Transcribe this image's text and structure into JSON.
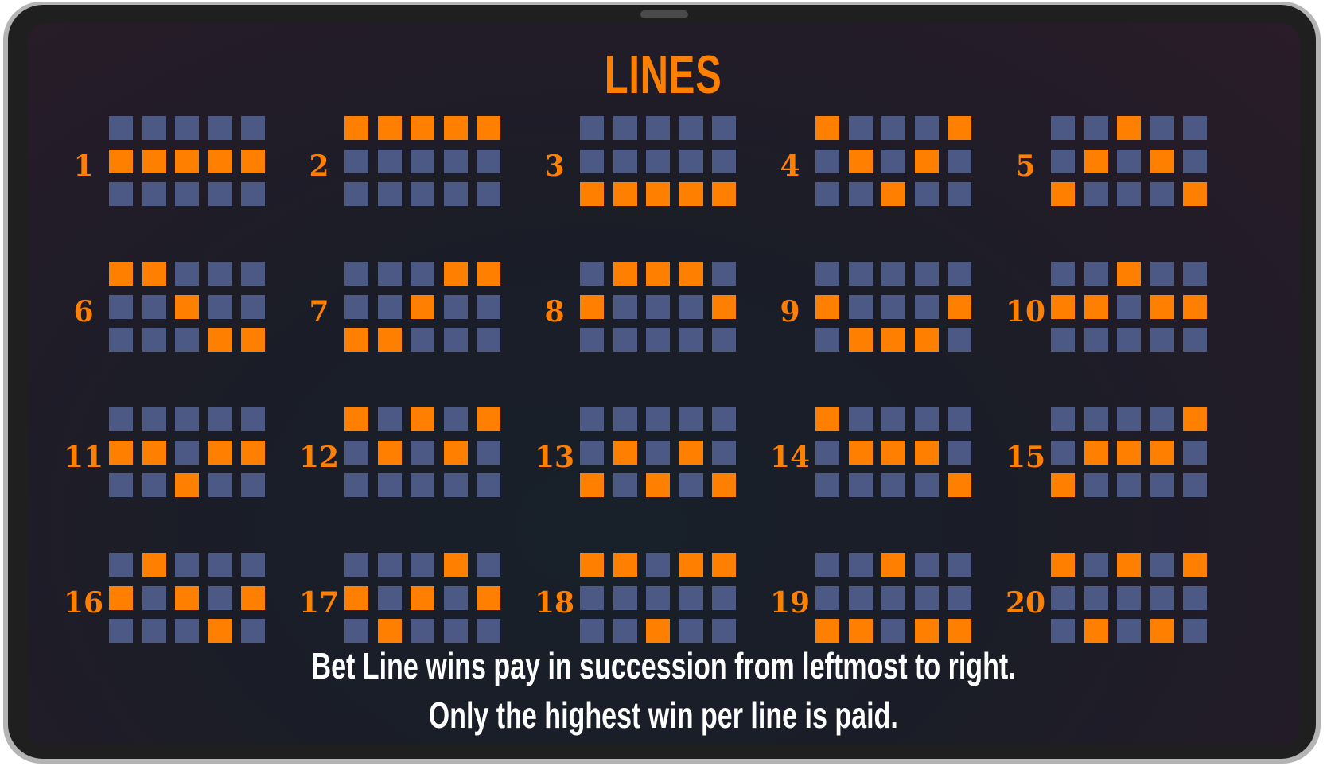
{
  "title": "LINES",
  "colors": {
    "active": "#ff7f00",
    "inactive": "#4d5985",
    "accent": "#ff7f00",
    "text": "#ffffff"
  },
  "lines": [
    {
      "number": "1",
      "rows": [
        1,
        1,
        1,
        1,
        1
      ]
    },
    {
      "number": "2",
      "rows": [
        0,
        0,
        0,
        0,
        0
      ]
    },
    {
      "number": "3",
      "rows": [
        2,
        2,
        2,
        2,
        2
      ]
    },
    {
      "number": "4",
      "rows": [
        0,
        1,
        2,
        1,
        0
      ]
    },
    {
      "number": "5",
      "rows": [
        2,
        1,
        0,
        1,
        2
      ]
    },
    {
      "number": "6",
      "rows": [
        0,
        0,
        1,
        2,
        2
      ]
    },
    {
      "number": "7",
      "rows": [
        2,
        2,
        1,
        0,
        0
      ]
    },
    {
      "number": "8",
      "rows": [
        1,
        0,
        0,
        0,
        1
      ]
    },
    {
      "number": "9",
      "rows": [
        1,
        2,
        2,
        2,
        1
      ]
    },
    {
      "number": "10",
      "rows": [
        1,
        1,
        0,
        1,
        1
      ]
    },
    {
      "number": "11",
      "rows": [
        1,
        1,
        2,
        1,
        1
      ]
    },
    {
      "number": "12",
      "rows": [
        0,
        1,
        0,
        1,
        0
      ]
    },
    {
      "number": "13",
      "rows": [
        2,
        1,
        2,
        1,
        2
      ]
    },
    {
      "number": "14",
      "rows": [
        0,
        1,
        1,
        1,
        2
      ]
    },
    {
      "number": "15",
      "rows": [
        2,
        1,
        1,
        1,
        0
      ]
    },
    {
      "number": "16",
      "rows": [
        1,
        0,
        1,
        2,
        1
      ]
    },
    {
      "number": "17",
      "rows": [
        1,
        2,
        1,
        0,
        1
      ]
    },
    {
      "number": "18",
      "rows": [
        0,
        0,
        2,
        0,
        0
      ]
    },
    {
      "number": "19",
      "rows": [
        2,
        2,
        0,
        2,
        2
      ]
    },
    {
      "number": "20",
      "rows": [
        0,
        2,
        0,
        2,
        0
      ]
    }
  ],
  "footer": {
    "line1": "Bet Line wins pay in succession from leftmost to right.",
    "line2": "Only the highest win per line is paid."
  }
}
